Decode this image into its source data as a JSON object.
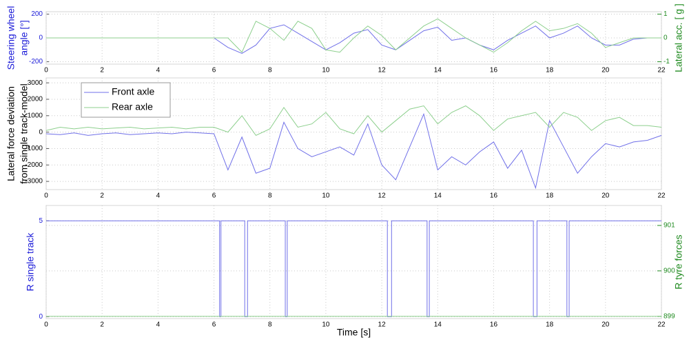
{
  "chart_data": [
    {
      "type": "line",
      "ylabel": [
        "Steering wheel",
        "angle [°]"
      ],
      "y2label": "Lateral acc. [ g ]",
      "xlim": [
        0,
        22
      ],
      "xticks": [
        0,
        2,
        4,
        6,
        8,
        10,
        12,
        14,
        16,
        18,
        20,
        22
      ],
      "ylim": [
        -220,
        220
      ],
      "yticks": [
        -200,
        0,
        200
      ],
      "y2lim": [
        -1.1,
        1.1
      ],
      "y2ticks": [
        -1,
        0,
        1
      ],
      "grid": true,
      "x": [
        0,
        0.5,
        1,
        1.5,
        2,
        2.5,
        3,
        3.5,
        4,
        4.5,
        5,
        5.5,
        6,
        6.5,
        7,
        7.5,
        8,
        8.5,
        9,
        9.5,
        10,
        10.5,
        11,
        11.5,
        12,
        12.5,
        13,
        13.5,
        14,
        14.5,
        15,
        15.5,
        16,
        16.5,
        17,
        17.5,
        18,
        18.5,
        19,
        19.5,
        20,
        20.5,
        21,
        21.5,
        22
      ],
      "series": [
        {
          "color": "#6f6fe8",
          "values": [
            0,
            0,
            0,
            0,
            0,
            0,
            0,
            0,
            0,
            0,
            0,
            0,
            0,
            -80,
            -130,
            -60,
            80,
            110,
            40,
            -30,
            -100,
            -40,
            40,
            70,
            -60,
            -100,
            -20,
            60,
            90,
            -20,
            0,
            -60,
            -100,
            -20,
            40,
            100,
            0,
            40,
            100,
            0,
            -60,
            -60,
            -10,
            0,
            0
          ]
        },
        {
          "color": "#8ccf8c",
          "axis": "y2",
          "values": [
            0,
            0,
            0,
            0,
            0,
            0,
            0,
            0,
            0,
            0,
            0,
            0,
            0,
            0,
            -0.6,
            0.7,
            0.4,
            -0.1,
            0.7,
            0.4,
            -0.5,
            -0.6,
            0,
            0.5,
            0.1,
            -0.5,
            0,
            0.5,
            0.8,
            0.4,
            0,
            -0.3,
            -0.6,
            -0.2,
            0.3,
            0.7,
            0.3,
            0.4,
            0.6,
            0.2,
            -0.4,
            -0.2,
            0,
            0,
            0
          ]
        }
      ]
    },
    {
      "type": "line",
      "ylabel": [
        "Lateral force deviation",
        "from single track-model"
      ],
      "xlim": [
        0,
        22
      ],
      "xticks": [
        0,
        2,
        4,
        6,
        8,
        10,
        12,
        14,
        16,
        18,
        20,
        22
      ],
      "ylim": [
        -3500,
        3300
      ],
      "yticks": [
        -3000,
        -2000,
        -1000,
        0,
        1000,
        2000,
        3000
      ],
      "grid": true,
      "legend": "upper left",
      "x": [
        0,
        0.5,
        1,
        1.5,
        2,
        2.5,
        3,
        3.5,
        4,
        4.5,
        5,
        5.5,
        6,
        6.5,
        7,
        7.5,
        8,
        8.5,
        9,
        9.5,
        10,
        10.5,
        11,
        11.5,
        12,
        12.5,
        13,
        13.5,
        14,
        14.5,
        15,
        15.5,
        16,
        16.5,
        17,
        17.5,
        18,
        18.5,
        19,
        19.5,
        20,
        20.5,
        21,
        21.5,
        22
      ],
      "series": [
        {
          "name": "Front axle",
          "color": "#6f6fe8",
          "values": [
            -100,
            -150,
            -50,
            -200,
            -100,
            -50,
            -150,
            -100,
            -50,
            -100,
            0,
            -50,
            -100,
            -2300,
            -300,
            -2500,
            -2200,
            600,
            -1000,
            -1500,
            -1200,
            -900,
            -1400,
            500,
            -2000,
            -2900,
            -900,
            1100,
            -2300,
            -1500,
            -2000,
            -1200,
            -600,
            -2200,
            -1100,
            -3400,
            700,
            -900,
            -2500,
            -1500,
            -700,
            -900,
            -600,
            -500,
            -200
          ]
        },
        {
          "name": "Rear axle",
          "color": "#8ccf8c",
          "values": [
            100,
            300,
            200,
            300,
            200,
            250,
            300,
            200,
            250,
            300,
            200,
            300,
            300,
            0,
            1000,
            -200,
            200,
            1500,
            300,
            500,
            1200,
            200,
            -100,
            1000,
            0,
            700,
            1400,
            1600,
            500,
            1200,
            1600,
            1000,
            100,
            800,
            1000,
            1200,
            300,
            1200,
            900,
            100,
            700,
            900,
            400,
            400,
            300
          ]
        }
      ]
    },
    {
      "type": "line",
      "ylabel": [
        "R single track"
      ],
      "y2label": "R tyre forces",
      "xlabel": "Time [s]",
      "xlim": [
        0,
        22
      ],
      "xticks": [
        0,
        2,
        4,
        6,
        8,
        10,
        12,
        14,
        16,
        18,
        20,
        22
      ],
      "ylim": [
        -0.1,
        5.8
      ],
      "yticks": [
        0,
        5
      ],
      "y2lim": [
        898.95,
        901.44
      ],
      "y2ticks": [
        899,
        900,
        901
      ],
      "grid": true,
      "series": [
        {
          "color": "#6f6fe8",
          "x": [
            0,
            6.2,
            6.2,
            6.25,
            6.25,
            7.1,
            7.1,
            7.2,
            7.2,
            8.55,
            8.55,
            8.62,
            8.62,
            12.2,
            12.2,
            12.35,
            12.35,
            13.62,
            13.62,
            13.7,
            13.7,
            17.42,
            17.42,
            17.55,
            17.55,
            18.62,
            18.62,
            18.7,
            18.7,
            22
          ],
          "values": [
            5,
            5,
            0,
            0,
            5,
            5,
            0,
            0,
            5,
            5,
            0,
            0,
            5,
            5,
            0,
            0,
            5,
            5,
            0,
            0,
            5,
            5,
            0,
            0,
            5,
            5,
            0,
            0,
            5,
            5
          ]
        },
        {
          "color": "#8ccf8c",
          "axis": "y2",
          "x": [
            0,
            22
          ],
          "values": [
            899,
            899
          ]
        }
      ]
    }
  ]
}
